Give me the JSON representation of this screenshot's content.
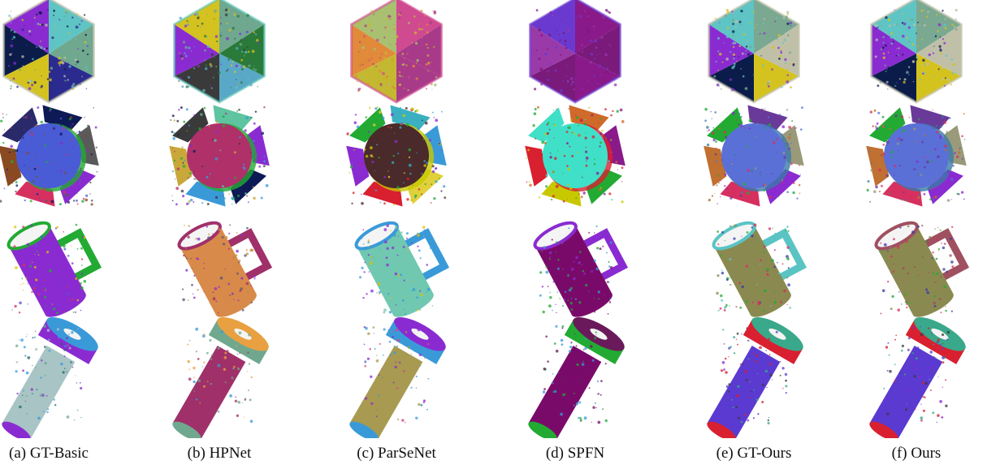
{
  "figure": {
    "columns": [
      {
        "caption": "(a) GT-Basic"
      },
      {
        "caption": "(b) HPNet"
      },
      {
        "caption": "(c) ParSeNet"
      },
      {
        "caption": "(d) SPFN"
      },
      {
        "caption": "(e) GT-Ours"
      },
      {
        "caption": "(f) Ours"
      }
    ],
    "rows": [
      "icosahedron-model",
      "gear-disk-model",
      "mug-model",
      "bolt-model"
    ]
  },
  "palettes": {
    "a": {
      "ico": [
        "#2b2b8f",
        "#d4c21f",
        "#0b1c4a",
        "#8a2bd1",
        "#5fc4c4",
        "#6fa88f",
        "#c0c0a8"
      ],
      "gear": [
        "#4a5bd6",
        "#0e1a55",
        "#5a5a5a",
        "#8a2bd1",
        "#d63060",
        "#8a4a20",
        "#2a2a6a",
        "#22aa33"
      ],
      "mug": [
        "#8a2bd1",
        "#22aa33",
        "#d63060",
        "#4a5bd6",
        "#e0c000"
      ],
      "bolt": [
        "#a8c4c4",
        "#3a9ad8",
        "#8a2bd1",
        "#6fa88f",
        "#1a6a6a"
      ]
    },
    "b": {
      "ico": [
        "#5aa8c8",
        "#3a3a3a",
        "#8a2bd1",
        "#d4c21f",
        "#6fa88f",
        "#2a7a3a",
        "#5cc4b8"
      ],
      "gear": [
        "#b0306a",
        "#5fc4a0",
        "#8a2bd1",
        "#0e1a55",
        "#3a9ad8",
        "#c8a83a",
        "#3a3a3a",
        "#22aa33"
      ],
      "mug": [
        "#d88a4a",
        "#a0306a",
        "#c09040",
        "#555577",
        "#8a2bd1"
      ],
      "bolt": [
        "#a0306a",
        "#e8a040",
        "#6fa88f",
        "#3a9ad8"
      ]
    },
    "c": {
      "ico": [
        "#a83a8a",
        "#c4b830",
        "#e08a3a",
        "#a8c070",
        "#d04a90"
      ],
      "gear": [
        "#4a2a2a",
        "#3ab0c0",
        "#3a9ad8",
        "#e0d03a",
        "#d82030",
        "#8a2bd1",
        "#22aa33",
        "#c8c800"
      ],
      "mug": [
        "#70c8b0",
        "#3a9ad8",
        "#8a2bd1",
        "#e0c000"
      ],
      "bolt": [
        "#a89a50",
        "#8a2bd1",
        "#3a9ad8",
        "#d04a90"
      ]
    },
    "d": {
      "ico": [
        "#8a1a8a",
        "#7a1a7a",
        "#9a3aa8",
        "#6a3ad0"
      ],
      "gear": [
        "#40e0c8",
        "#d06a2a",
        "#8a1a8a",
        "#22aa33",
        "#c8c800",
        "#d82030"
      ],
      "mug": [
        "#7a0a6a",
        "#8a2bd1",
        "#22aa33",
        "#3a9ad8"
      ],
      "bolt": [
        "#7a0a6a",
        "#6a1a5a",
        "#22aa33",
        "#3a9ad8"
      ]
    },
    "e": {
      "ico": [
        "#d4c21f",
        "#0b1c4a",
        "#8a2bd1",
        "#5fc4c4",
        "#7aa890",
        "#c0c0a8"
      ],
      "gear": [
        "#5a70d6",
        "#6a3a9a",
        "#9a9a7a",
        "#8a2bd1",
        "#d63060",
        "#c07030",
        "#22aa33",
        "#3a7aa8"
      ],
      "mug": [
        "#8a8a50",
        "#5ac4c4",
        "#d63060",
        "#22aa33",
        "#3a3aaa"
      ],
      "bolt": [
        "#5a3ad0",
        "#3aa88a",
        "#d82030",
        "#3a3a3a",
        "#8a2bd1"
      ]
    },
    "f": {
      "ico": [
        "#d4c21f",
        "#0b1c4a",
        "#8a2bd1",
        "#5fc4c4",
        "#7aa890",
        "#c0c0a8"
      ],
      "gear": [
        "#5a70d6",
        "#6a3a9a",
        "#9a9a7a",
        "#8a2bd1",
        "#d63060",
        "#c07030",
        "#22aa33",
        "#3a7aa8"
      ],
      "mug": [
        "#8a8a50",
        "#a05060",
        "#d63060",
        "#22aa33",
        "#3a3aaa"
      ],
      "bolt": [
        "#5a3ad0",
        "#3aa88a",
        "#d82030",
        "#3a3a3a",
        "#8a2bd1"
      ]
    }
  }
}
